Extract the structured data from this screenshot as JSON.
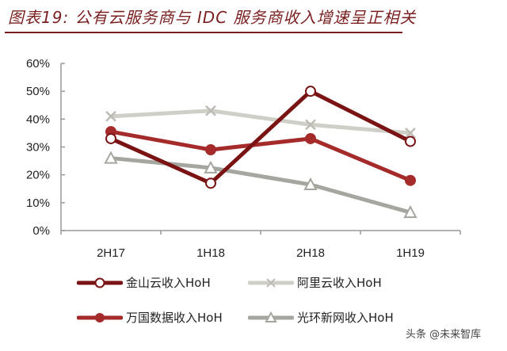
{
  "title": "图表19: 公有云服务商与 IDC 服务商收入增速呈正相关",
  "watermark": "头条 @未来智库",
  "chart_data": {
    "type": "line",
    "title": "图表19: 公有云服务商与 IDC 服务商收入增速呈正相关",
    "xlabel": "",
    "ylabel": "",
    "categories": [
      "2H17",
      "1H18",
      "2H18",
      "1H19"
    ],
    "yticks": [
      "0%",
      "10%",
      "20%",
      "30%",
      "40%",
      "50%",
      "60%"
    ],
    "ylim": [
      0,
      0.6
    ],
    "grid": false,
    "legend_position": "bottom",
    "series": [
      {
        "name": "金山云收入HoH",
        "values": [
          0.33,
          0.17,
          0.5,
          0.32
        ],
        "color": "#7a1414",
        "marker": "circle-open"
      },
      {
        "name": "阿里云收入HoH",
        "values": [
          0.41,
          0.43,
          0.38,
          0.35
        ],
        "color": "#cfcfc8",
        "marker": "x"
      },
      {
        "name": "万国数据收入HoH",
        "values": [
          0.355,
          0.29,
          0.33,
          0.18
        ],
        "color": "#a52a2a",
        "marker": "circle-filled"
      },
      {
        "name": "光环新网收入HoH",
        "values": [
          0.26,
          0.225,
          0.165,
          0.065
        ],
        "color": "#a6a6a0",
        "marker": "triangle-open"
      }
    ]
  },
  "legend": [
    {
      "label": "金山云收入HoH"
    },
    {
      "label": "阿里云收入HoH"
    },
    {
      "label": "万国数据收入HoH"
    },
    {
      "label": "光环新网收入HoH"
    }
  ]
}
